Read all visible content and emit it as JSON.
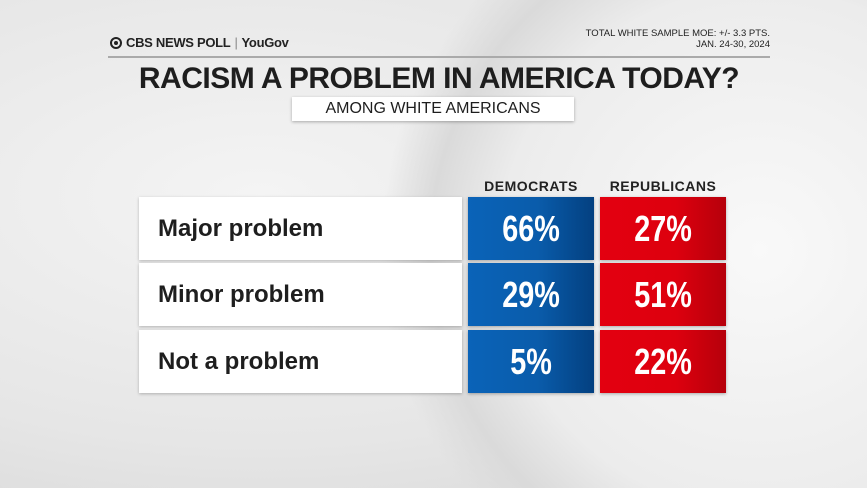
{
  "header": {
    "logo": "CBS NEWS POLL",
    "partner": "YouGov",
    "moe": "TOTAL WHITE SAMPLE MOE: +/- 3.3 PTS.",
    "dates": "JAN. 24-30, 2024"
  },
  "colors": {
    "democrats": "#0a5cab",
    "republicans": "#dd000e"
  },
  "chart_data": {
    "type": "table",
    "title": "RACISM A PROBLEM IN AMERICA TODAY?",
    "subtitle": "AMONG WHITE AMERICANS",
    "categories": [
      "Major problem",
      "Minor problem",
      "Not a problem"
    ],
    "series": [
      {
        "name": "DEMOCRATS",
        "values": [
          66,
          29,
          5
        ],
        "labels": [
          "66%",
          "29%",
          "5%"
        ]
      },
      {
        "name": "REPUBLICANS",
        "values": [
          27,
          51,
          22
        ],
        "labels": [
          "27%",
          "51%",
          "22%"
        ]
      }
    ]
  }
}
